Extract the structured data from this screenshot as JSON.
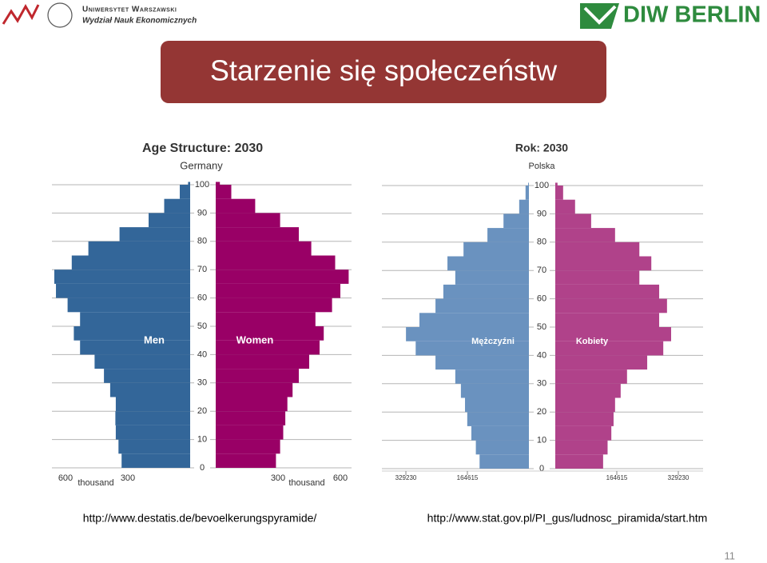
{
  "header": {
    "university": "Uniwersytet Warszawski",
    "faculty": "Wydział Nauk Ekonomicznych",
    "logo_right": "DIW BERLIN"
  },
  "slide_title": "Starzenie się społeczeństw",
  "chart_data": [
    {
      "type": "pyramid",
      "title": "Age Structure: 2030",
      "subtitle": "Germany",
      "x_unit_label": "thousand",
      "ages": [
        0,
        5,
        10,
        15,
        20,
        25,
        30,
        35,
        40,
        45,
        50,
        55,
        60,
        65,
        70,
        75,
        80,
        85,
        90,
        95,
        100
      ],
      "ylim": [
        0,
        100
      ],
      "yticks": [
        0,
        10,
        20,
        30,
        40,
        50,
        60,
        70,
        80,
        90,
        100
      ],
      "xlim": [
        0,
        700
      ],
      "xticks_left": [
        600,
        300
      ],
      "xticks_right": [
        300,
        600
      ],
      "series": [
        {
          "name": "Men",
          "color": "#336699",
          "side": "left",
          "values": [
            330,
            345,
            358,
            360,
            358,
            385,
            415,
            460,
            530,
            560,
            530,
            590,
            646,
            654,
            570,
            490,
            340,
            200,
            125,
            50,
            10
          ]
        },
        {
          "name": "Women",
          "color": "#990066",
          "side": "right",
          "values": [
            290,
            310,
            325,
            335,
            345,
            370,
            400,
            450,
            500,
            520,
            480,
            560,
            600,
            640,
            575,
            460,
            400,
            310,
            190,
            75,
            20
          ]
        }
      ]
    },
    {
      "type": "pyramid",
      "title": "Rok: 2030",
      "subtitle": "Polska",
      "ages": [
        0,
        5,
        10,
        15,
        20,
        25,
        30,
        35,
        40,
        45,
        50,
        55,
        60,
        65,
        70,
        75,
        80,
        85,
        90,
        95,
        100
      ],
      "ylim": [
        0,
        100
      ],
      "yticks": [
        0,
        10,
        20,
        30,
        40,
        50,
        60,
        70,
        80,
        90,
        100
      ],
      "xlim": [
        0,
        350000
      ],
      "xticks_left": [
        329230,
        164615
      ],
      "xticks_right": [
        164615,
        329230
      ],
      "series": [
        {
          "name": "Mężczyźni",
          "color": "#6a92bf",
          "side": "left",
          "values": [
            132000,
            142000,
            154000,
            165000,
            171000,
            182000,
            197000,
            250000,
            303000,
            329000,
            293000,
            250000,
            229000,
            197000,
            218000,
            175000,
            111000,
            68000,
            26000,
            9000,
            2000
          ]
        },
        {
          "name": "Kobiety",
          "color": "#b0428a",
          "side": "right",
          "values": [
            128000,
            140000,
            150000,
            156000,
            160000,
            175000,
            192000,
            246000,
            289000,
            310000,
            278000,
            299000,
            278000,
            225000,
            257000,
            225000,
            160000,
            96000,
            53000,
            21000,
            6000
          ]
        }
      ]
    }
  ],
  "sources": [
    "http://www.destatis.de/bevoelkerungspyramide/",
    "http://www.stat.gov.pl/PI_gus/ludnosc_piramida/start.htm"
  ],
  "page_number": "11"
}
